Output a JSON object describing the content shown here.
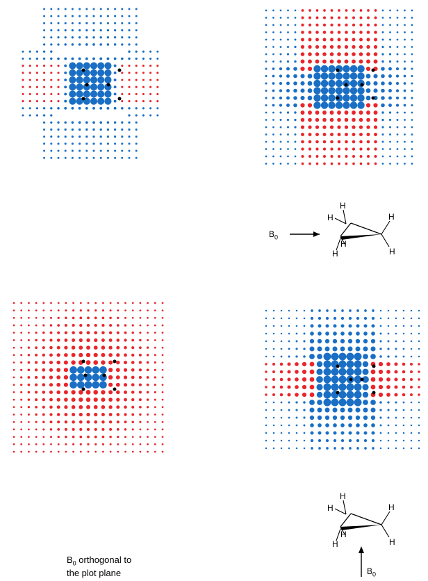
{
  "colors": {
    "shielded": "#1a6fc4",
    "deshielded": "#e8262b",
    "atom": "#000000"
  },
  "molecule": {
    "atoms_H": "H",
    "field_label": "B",
    "field_subscript": "0"
  },
  "caption": {
    "field": "B",
    "subscript": "0",
    "line1_rest": " orthogonal to",
    "line2": "the plot plane"
  },
  "panels": [
    {
      "name": "shielding-plot-top-left",
      "view": "in-plane"
    },
    {
      "name": "shielding-plot-top-right",
      "view": "in-plane"
    },
    {
      "name": "shielding-plot-bottom-left",
      "view": "orthogonal"
    },
    {
      "name": "shielding-plot-bottom-right",
      "view": "in-plane"
    }
  ]
}
